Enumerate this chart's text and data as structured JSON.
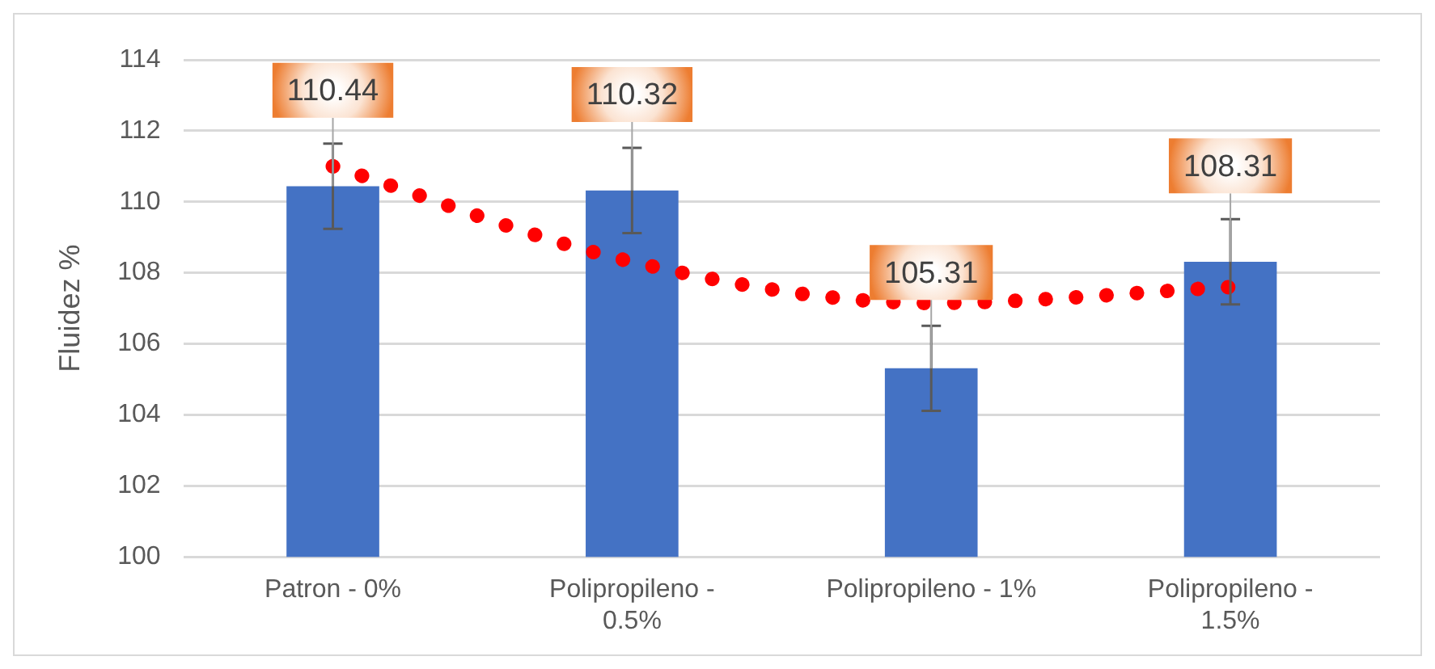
{
  "chart_data": {
    "type": "bar",
    "ylabel": "Fluidez %",
    "categories": [
      "Patron - 0%",
      "Polipropileno - 0.5%",
      "Polipropileno - 1%",
      "Polipropileno - 1.5%"
    ],
    "ylim": [
      100,
      114
    ],
    "yticks": [
      100,
      102,
      104,
      106,
      108,
      110,
      112,
      114
    ],
    "grid": "y",
    "series": [
      {
        "color": "#4472c4",
        "values": [
          110.44,
          110.32,
          105.31,
          108.31
        ],
        "errors": [
          1.2,
          1.2,
          1.2,
          1.2
        ],
        "value_labels": [
          "110.44",
          "110.32",
          "105.31",
          "108.31"
        ]
      },
      {
        "type": "line",
        "color": "#ff0000",
        "line_style": "dotted",
        "marker": "none",
        "values": [
          111.0,
          108.31,
          107.15,
          107.6
        ]
      }
    ]
  }
}
